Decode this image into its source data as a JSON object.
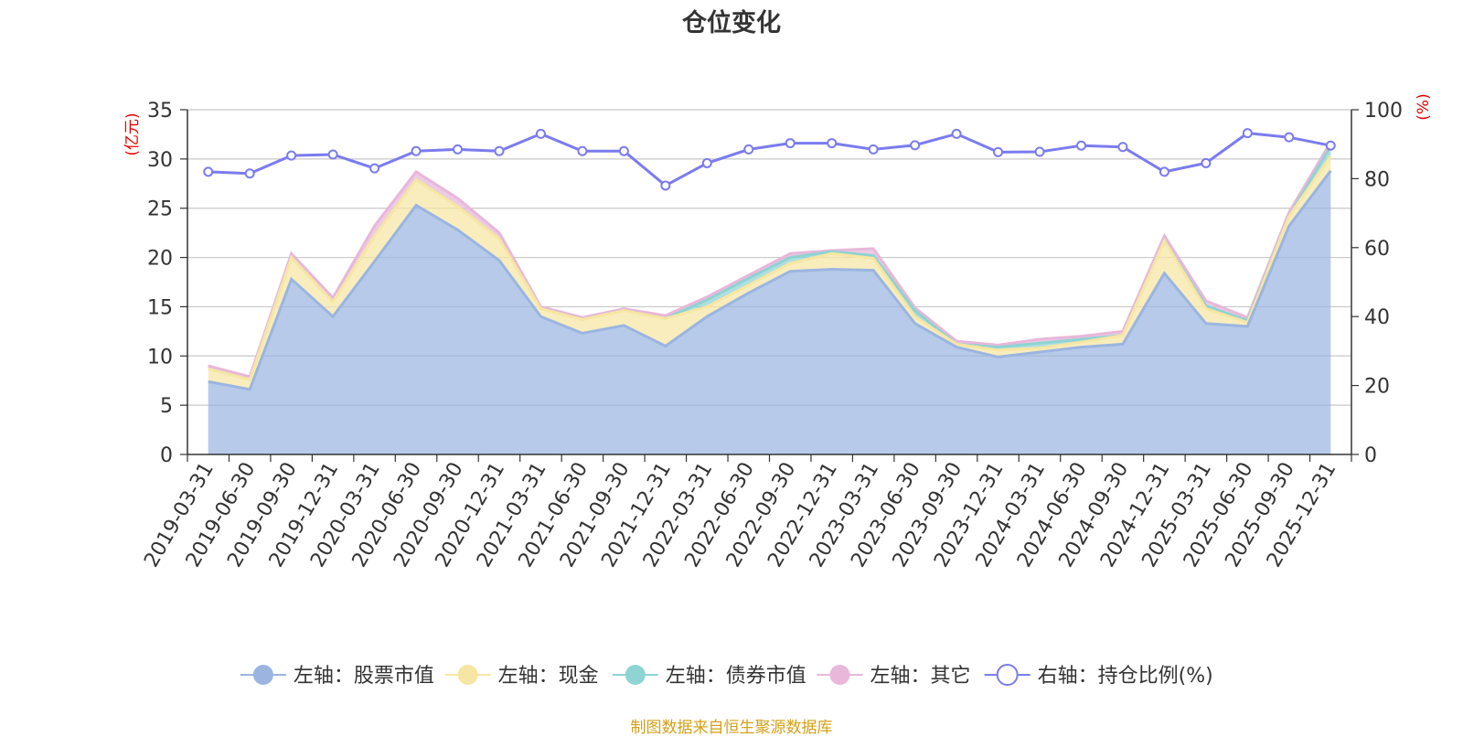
{
  "chart_data": {
    "type": "area",
    "title": "仓位变化",
    "left_axis_unit": "(亿元)",
    "right_axis_unit": "(%)",
    "ylim_left": [
      0,
      35
    ],
    "yticks_left": [
      "0",
      "5",
      "10",
      "15",
      "20",
      "25",
      "30",
      "35"
    ],
    "ylim_right": [
      0,
      100
    ],
    "yticks_right": [
      "0",
      "20",
      "40",
      "60",
      "80",
      "100"
    ],
    "categories": [
      "2019-03-31",
      "2019-06-30",
      "2019-09-30",
      "2019-12-31",
      "2020-03-31",
      "2020-06-30",
      "2020-09-30",
      "2020-12-31",
      "2021-03-31",
      "2021-06-30",
      "2021-09-30",
      "2021-12-31",
      "2022-03-31",
      "2022-06-30",
      "2022-09-30",
      "2022-12-31",
      "2023-03-31",
      "2023-06-30",
      "2023-09-30",
      "2023-12-31",
      "2024-03-31",
      "2024-06-30",
      "2024-09-30",
      "2024-12-31",
      "2025-03-31",
      "2025-06-30",
      "2025-09-30",
      "2025-12-31"
    ],
    "series": [
      {
        "name": "左轴：股票市值",
        "axis": "left",
        "kind": "stacked-area",
        "color": "#9bb5e0",
        "values": [
          7.4,
          6.6,
          17.8,
          14.0,
          19.6,
          25.3,
          22.8,
          19.7,
          14.0,
          12.3,
          13.1,
          11.0,
          14.0,
          16.4,
          18.6,
          18.8,
          18.7,
          13.3,
          10.9,
          9.9,
          10.4,
          10.9,
          11.2,
          18.4,
          13.3,
          13.0,
          23.2,
          28.8
        ]
      },
      {
        "name": "左轴：现金",
        "axis": "left",
        "kind": "stacked-area",
        "color": "#f7e6a3",
        "values": [
          1.3,
          1.0,
          2.2,
          1.5,
          2.6,
          2.6,
          2.4,
          2.2,
          0.8,
          1.4,
          1.5,
          2.8,
          1.0,
          0.8,
          0.8,
          1.6,
          1.2,
          0.7,
          0.3,
          0.7,
          0.4,
          0.5,
          0.9,
          3.3,
          1.5,
          0.4,
          1.0,
          1.5
        ]
      },
      {
        "name": "左轴：债券市值",
        "axis": "left",
        "kind": "stacked-area",
        "color": "#8fd3d3",
        "values": [
          0,
          0,
          0,
          0,
          0,
          0,
          0,
          0,
          0,
          0,
          0,
          0,
          0.7,
          0.7,
          0.6,
          0.2,
          0.3,
          0.6,
          0,
          0.3,
          0.5,
          0.3,
          0,
          0,
          0.3,
          0.2,
          0,
          1.0
        ]
      },
      {
        "name": "左轴：其它",
        "axis": "left",
        "kind": "stacked-area",
        "color": "#e8b7d9",
        "values": [
          0.3,
          0.3,
          0.4,
          0.4,
          1.0,
          0.8,
          0.8,
          0.6,
          0.2,
          0.2,
          0.2,
          0.3,
          0.3,
          0.3,
          0.4,
          0.1,
          0.7,
          0.3,
          0.3,
          0.2,
          0.4,
          0.3,
          0.4,
          0.5,
          0.5,
          0.3,
          0.4,
          0.4
        ]
      },
      {
        "name": "右轴：持仓比例(%)",
        "axis": "right",
        "kind": "line",
        "color": "#7b7bef",
        "values": [
          82.0,
          81.5,
          86.7,
          87.0,
          83.0,
          88.0,
          88.5,
          88.0,
          93.0,
          88.0,
          88.0,
          78.0,
          84.5,
          88.5,
          90.3,
          90.3,
          88.5,
          89.7,
          93.0,
          87.7,
          87.8,
          89.6,
          89.2,
          82.0,
          84.5,
          93.2,
          92.0,
          89.6
        ]
      }
    ],
    "grid": true,
    "legend": "bottom-center"
  },
  "footer": {
    "source": "制图数据来自恒生聚源数据库"
  }
}
